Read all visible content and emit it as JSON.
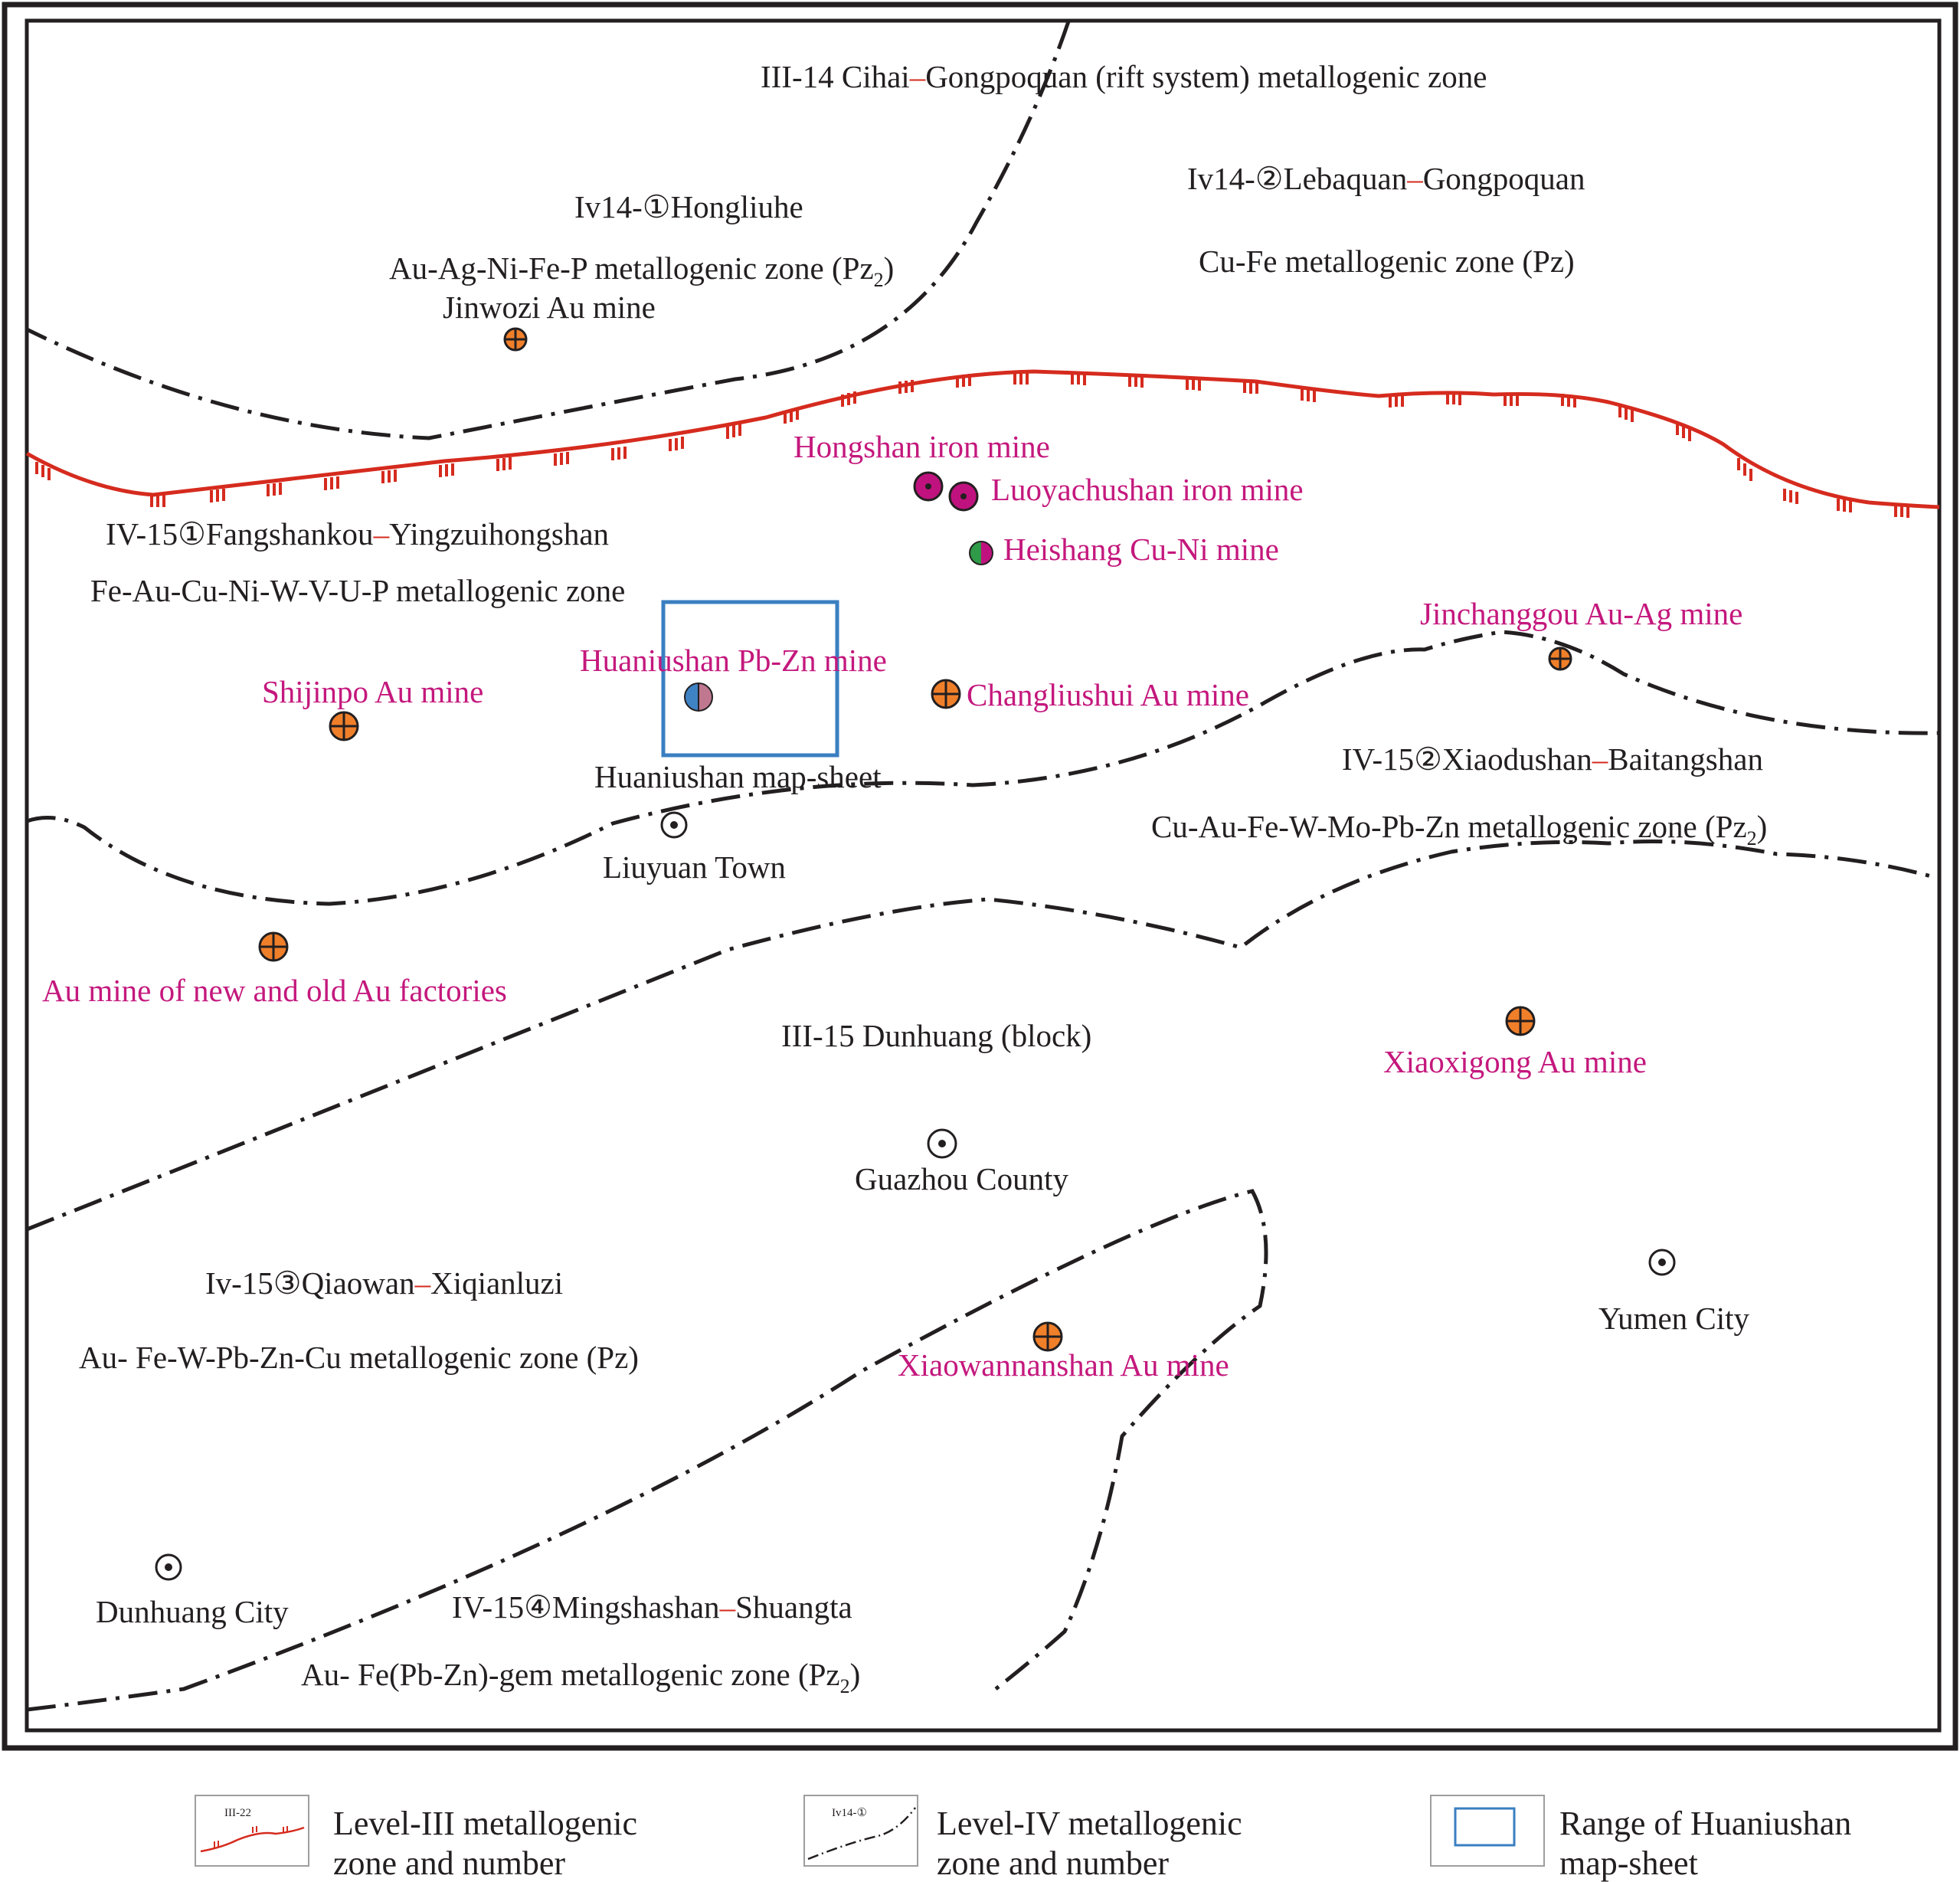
{
  "colors": {
    "frame": "#231f20",
    "level_iii_line": "#d52b1e",
    "level_iv_line": "#231f20",
    "map_sheet_box": "#3a7fc1",
    "mine_label": "#c4187d",
    "place_label": "#231f20",
    "au_symbol": "#f07f2a",
    "fe_symbol": "#c0127f",
    "cu_symbol": "#2f9a47",
    "pb_symbol": "#3f83c4",
    "zn_symbol": "#c07891"
  },
  "zones": {
    "iii14_prefix": "III-14 Cihai",
    "iii14_dash": "–",
    "iii14_suffix": "Gongpoquan (rift system) metallogenic zone",
    "iv14_1_line1": "Iv14-①Hongliuhe",
    "iv14_1_line2_main": "Au-Ag-Ni-Fe-P metallogenic zone (Pz",
    "iv14_1_line2_sub": "2",
    "iv14_1_line2_end": ")",
    "iv14_2_prefix": "Iv14-②Lebaquan",
    "iv14_2_dash": "–",
    "iv14_2_suffix": "Gongpoquan",
    "iv14_2_line2": "Cu-Fe metallogenic zone (Pz)",
    "iv15_1_prefix": "IV-15①Fangshankou",
    "iv15_1_dash": "–",
    "iv15_1_suffix": "Yingzuihongshan",
    "iv15_1_line2": "Fe-Au-Cu-Ni-W-V-U-P metallogenic zone",
    "iv15_2_prefix": "IV-15②Xiaodushan",
    "iv15_2_dash": "–",
    "iv15_2_suffix": "Baitangshan",
    "iv15_2_line2_main": "Cu-Au-Fe-W-Mo-Pb-Zn metallogenic zone (Pz",
    "iv15_2_line2_sub": "2",
    "iv15_2_line2_end": ")",
    "iii15": "III-15 Dunhuang (block)",
    "iv15_3_prefix": "Iv-15③Qiaowan",
    "iv15_3_dash": "–",
    "iv15_3_suffix": "Xiqianluzi",
    "iv15_3_line2": "Au- Fe-W-Pb-Zn-Cu metallogenic zone (Pz)",
    "iv15_4_prefix": "IV-15④Mingshashan",
    "iv15_4_dash": "–",
    "iv15_4_suffix": "Shuangta",
    "iv15_4_line2_main": "Au- Fe(Pb-Zn)-gem metallogenic zone (Pz",
    "iv15_4_line2_sub": "2",
    "iv15_4_line2_end": ")"
  },
  "mines": {
    "jinwozi": "Jinwozi Au mine",
    "hongshan": "Hongshan iron mine",
    "luoyachushan": "Luoyachushan iron mine",
    "heishang": "Heishang Cu-Ni mine",
    "jinchanggou": "Jinchanggou Au-Ag mine",
    "huaniushan": "Huaniushan Pb-Zn mine",
    "shijinpo": "Shijinpo Au mine",
    "changliushui": "Changliushui Au mine",
    "au_factories": "Au mine of new and old Au factories",
    "xiaoxigong": "Xiaoxigong Au mine",
    "xiaowannanshan": "Xiaowannanshan Au mine"
  },
  "places": {
    "map_sheet": "Huaniushan map-sheet",
    "liuyuan": "Liuyuan Town",
    "guazhou": "Guazhou County",
    "yumen": "Yumen City",
    "dunhuang": "Dunhuang City"
  },
  "legend": {
    "level_iii_sample": "III-22",
    "level_iii_line1": "Level-III metallogenic",
    "level_iii_line2": "zone and number",
    "level_iv_sample": "Iv14-①",
    "level_iv_line1": "Level-IV metallogenic",
    "level_iv_line2": "zone and number",
    "range_line1": "Range of Huaniushan",
    "range_line2": "map-sheet"
  }
}
